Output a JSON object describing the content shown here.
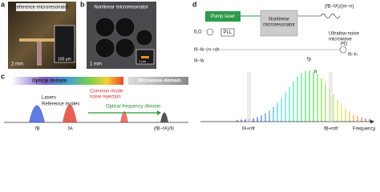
{
  "panels": {
    "a": {
      "label": "a",
      "title": "Reference microresonator",
      "scale_bar": "2 mm",
      "inset_scale_bar": "100 μm"
    },
    "b": {
      "label": "b",
      "title": "Nonlinear microresonator",
      "scale_bar": "1 mm",
      "inset_scale_bar": "1 μm"
    },
    "c": {
      "label": "c",
      "optical_domain": "Optical domain",
      "microwave_domain": "Microwave domain",
      "lasers": "Lasers",
      "reference_modes": "Reference modes",
      "common_mode": [
        "Common-mode",
        "noise rejection"
      ],
      "division": "Optical frequency division",
      "freq_b": "fB",
      "freq_a": "fA",
      "freq_div": "(fB−fA)/N"
    },
    "d": {
      "label": "d",
      "pump_laser": "Pump laser",
      "resonator": [
        "Nonlinear",
        "microresonator"
      ],
      "pll": "PLL",
      "lo": "fLO",
      "microwave": [
        "Ultralow-noise",
        "microwave"
      ],
      "pd": "PD",
      "top_freq": "(fB−fA)/(m−n)",
      "beat_1": "fB−fA−(m−n)fr",
      "beat_2": "fB−fA",
      "beat_3": "fB−fn",
      "rep_rate": "fr",
      "pump_freq": "fp",
      "mode_a": "fA+nfr",
      "mode_b": "fB+mfr",
      "axis": "Frequency"
    }
  }
}
